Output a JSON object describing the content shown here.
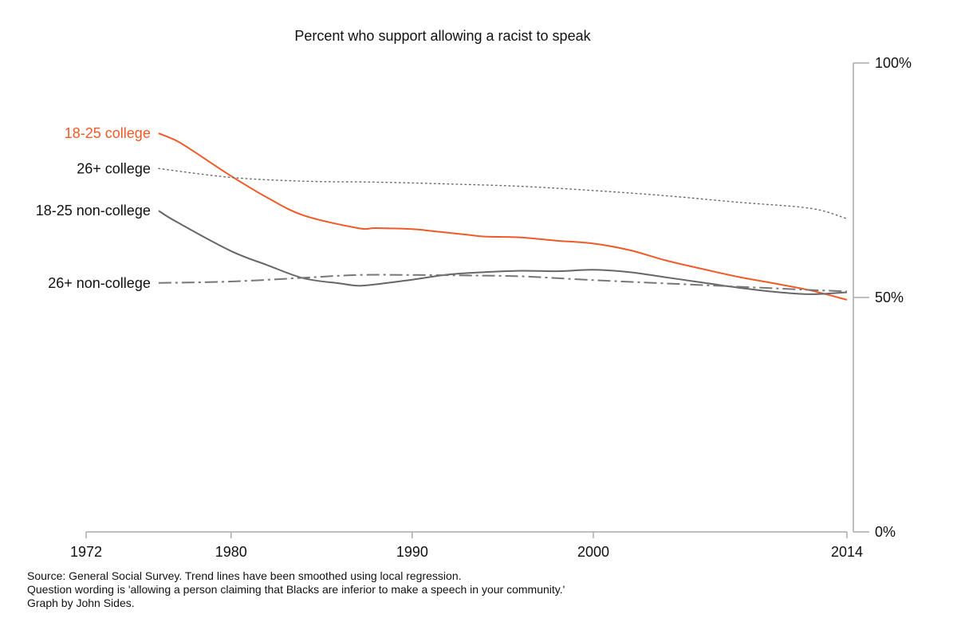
{
  "chart_data": {
    "type": "line",
    "title": "Percent who support allowing a racist to speak",
    "xlabel": "",
    "ylabel": "",
    "xlim": [
      1972,
      2014
    ],
    "ylim": [
      0,
      100
    ],
    "x_ticks": [
      1972,
      1980,
      1990,
      2000,
      2014
    ],
    "x_tick_labels": [
      "1972",
      "1980",
      "1990",
      "2000",
      "2014"
    ],
    "y_ticks": [
      100,
      50,
      0
    ],
    "y_tick_labels": [
      "100%",
      "50%",
      "0%"
    ],
    "grid": false,
    "legend": "direct labels at left of lines",
    "series": [
      {
        "name": "18-25 college",
        "label": "18-25 college",
        "color": "#f05a28",
        "dash": "solid",
        "x": [
          1976,
          1977,
          1978,
          1980,
          1982,
          1984,
          1987,
          1988,
          1990,
          1991,
          1993,
          1994,
          1996,
          1998,
          2000,
          2002,
          2004,
          2006,
          2008,
          2010,
          2012,
          2014
        ],
        "values": [
          85,
          83.4,
          81,
          75.9,
          71.3,
          67.5,
          64.8,
          64.8,
          64.6,
          64.2,
          63.4,
          63,
          62.8,
          62.1,
          61.5,
          60.1,
          57.9,
          56.1,
          54.4,
          53,
          51.5,
          49.5
        ]
      },
      {
        "name": "26+ college",
        "label": "26+ college",
        "color": "#666666",
        "dash": "dotted",
        "x": [
          1976,
          1980,
          1984,
          1988,
          1992,
          1996,
          2000,
          2004,
          2008,
          2012,
          2014
        ],
        "values": [
          77.5,
          75.6,
          74.8,
          74.6,
          74.2,
          73.7,
          72.8,
          71.7,
          70.3,
          69,
          66.8
        ]
      },
      {
        "name": "18-25 non-college",
        "label": "18-25 non-college",
        "color": "#666666",
        "dash": "solid",
        "x": [
          1976,
          1977,
          1980,
          1982,
          1984,
          1986,
          1987,
          1988,
          1990,
          1992,
          1994,
          1996,
          1998,
          2000,
          2002,
          2004,
          2006,
          2008,
          2010,
          2012,
          2014
        ],
        "values": [
          68.5,
          66.1,
          59.9,
          56.9,
          54.1,
          53,
          52.5,
          52.8,
          53.8,
          54.9,
          55.4,
          55.7,
          55.6,
          55.9,
          55.4,
          54.3,
          53.2,
          52.1,
          51.2,
          50.7,
          51.1
        ]
      },
      {
        "name": "26+ non-college",
        "label": "26+ non-college",
        "color": "#777777",
        "dash": "dashdot",
        "x": [
          1976,
          1980,
          1984,
          1987,
          1990,
          1993,
          1996,
          2000,
          2004,
          2008,
          2012,
          2014
        ],
        "values": [
          53.1,
          53.4,
          54.2,
          54.8,
          54.8,
          54.7,
          54.5,
          53.7,
          53,
          52.3,
          51.6,
          51.3
        ]
      }
    ],
    "notes": [
      "Source: General Social Survey. Trend lines have been smoothed using local regression.",
      "Question wording is 'allowing a person claiming that Blacks are inferior to make a speech in your community.'",
      "Graph by John Sides."
    ]
  }
}
